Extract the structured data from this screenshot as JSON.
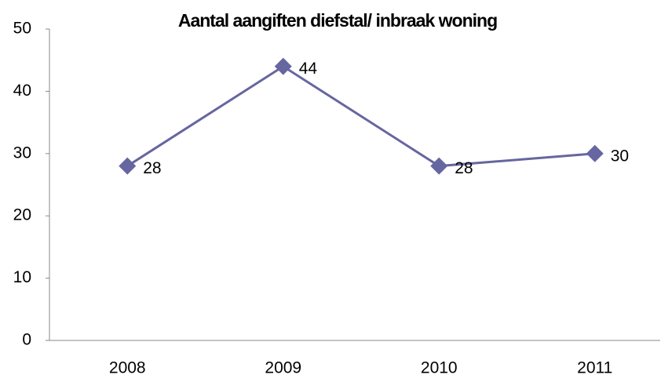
{
  "chart_data": {
    "type": "line",
    "title": "Aantal aangiften diefstal/ inbraak woning",
    "categories": [
      "2008",
      "2009",
      "2010",
      "2011"
    ],
    "values": [
      28,
      44,
      28,
      30
    ],
    "color": "#6666a0",
    "ylim": [
      0,
      50
    ],
    "yticks": [
      0,
      10,
      20,
      30,
      40,
      50
    ],
    "grid": false
  }
}
